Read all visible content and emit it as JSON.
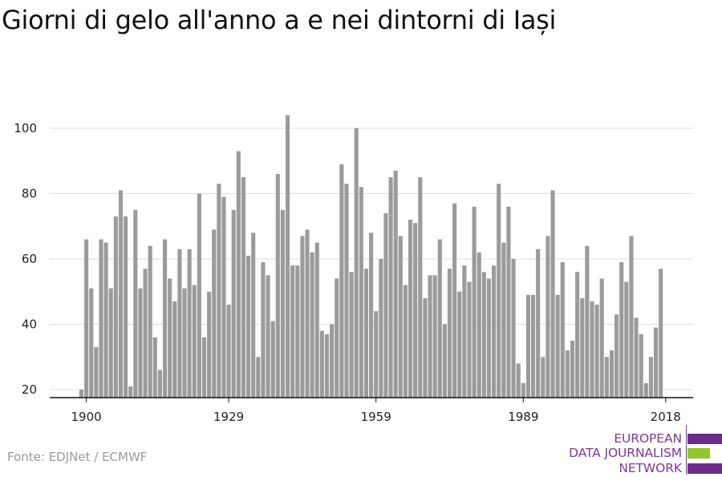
{
  "title": "Giorni di gelo all'anno a e nei dintorni di Iași",
  "source": "Fonte: EDJNet / ECMWF",
  "logo": {
    "line1": "EUROPEAN",
    "line2": "DATA JOURNALISM",
    "line3": "NETWORK",
    "colors": {
      "purple": "#6b2d8a",
      "green": "#95c62d",
      "text": "#7b3a96"
    }
  },
  "chart_data": {
    "type": "bar",
    "x_start": 1899,
    "values": [
      20,
      66,
      51,
      33,
      66,
      65,
      51,
      73,
      81,
      73,
      21,
      75,
      51,
      57,
      64,
      36,
      26,
      66,
      54,
      47,
      63,
      51,
      63,
      52,
      80,
      36,
      50,
      69,
      83,
      79,
      46,
      75,
      93,
      85,
      61,
      68,
      30,
      59,
      55,
      41,
      86,
      75,
      104,
      58,
      58,
      67,
      69,
      62,
      65,
      38,
      37,
      40,
      54,
      89,
      83,
      56,
      100,
      82,
      57,
      68,
      44,
      60,
      74,
      85,
      87,
      67,
      52,
      72,
      71,
      85,
      48,
      55,
      55,
      66,
      40,
      57,
      77,
      50,
      58,
      53,
      76,
      62,
      56,
      54,
      58,
      83,
      65,
      76,
      60,
      28,
      22,
      49,
      49,
      63,
      30,
      67,
      81,
      49,
      59,
      32,
      35,
      56,
      48,
      64,
      47,
      46,
      54,
      30,
      32,
      43,
      59,
      53,
      67,
      42,
      37,
      22,
      30,
      39,
      57
    ],
    "xticks": [
      "1900",
      "1929",
      "1959",
      "1989",
      "2018"
    ],
    "yticks": [
      "20",
      "40",
      "60",
      "80",
      "100"
    ],
    "ylim": [
      20,
      108
    ],
    "bar_color": "#9b9b9b",
    "grid_color": "#dddddd",
    "axis_color": "#111111",
    "grid": true
  }
}
